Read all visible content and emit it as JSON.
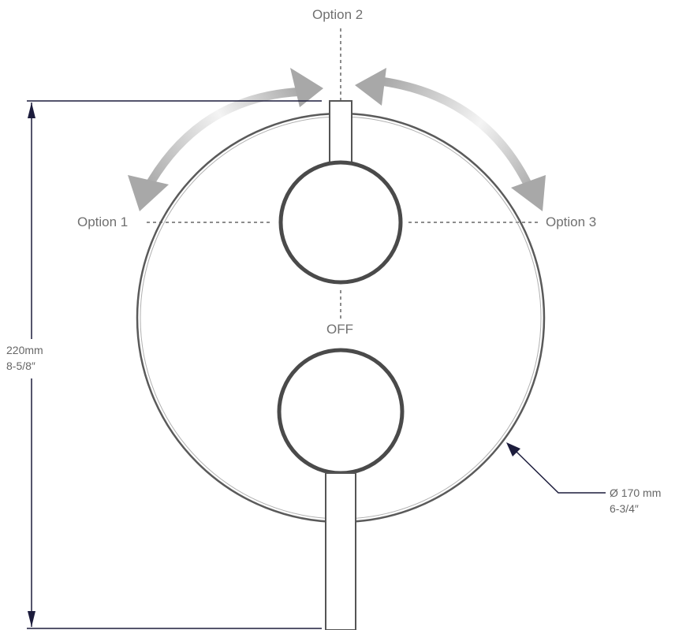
{
  "labels": {
    "option_1": "Option 1",
    "option_2": "Option 2",
    "option_3": "Option 3",
    "off": "OFF"
  },
  "dimensions": {
    "height_mm": "220mm",
    "height_in": "8-5/8″",
    "diameter_mm": "Ø 170 mm",
    "diameter_in": "6-3/4″"
  },
  "colors": {
    "outline": "#555555",
    "knob_ring": "#4a4a4a",
    "dimension_line": "#1c1c3c",
    "arrow_gray": "#a8a8a8",
    "text": "#707070"
  }
}
